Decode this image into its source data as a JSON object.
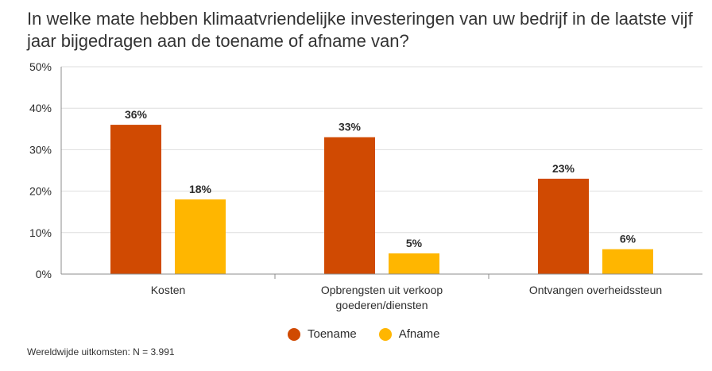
{
  "title": "In welke mate hebben klimaatvriendelijke investeringen van uw bedrijf in de laatste vijf jaar bijgedragen aan de toename of afname van?",
  "footnote": "Wereldwijde uitkomsten: N = 3.991",
  "colors": {
    "toename": "#d04a02",
    "afname": "#ffb600",
    "grid": "#dedede",
    "axis": "#8c8c8c",
    "text": "#2d2d2d"
  },
  "legend": [
    {
      "label": "Toename",
      "color": "#d04a02"
    },
    {
      "label": "Afname",
      "color": "#ffb600"
    }
  ],
  "chart_data": {
    "type": "bar",
    "title": "In welke mate hebben klimaatvriendelijke investeringen van uw bedrijf in de laatste vijf jaar bijgedragen aan de toename of afname van?",
    "categories": [
      [
        "Kosten"
      ],
      [
        "Opbrengsten uit verkoop",
        "goederen/diensten"
      ],
      [
        "Ontvangen overheidssteun"
      ]
    ],
    "series": [
      {
        "name": "Toename",
        "values": [
          36,
          33,
          23
        ],
        "labels": [
          "36%",
          "33%",
          "23%"
        ],
        "color": "#d04a02"
      },
      {
        "name": "Afname",
        "values": [
          18,
          5,
          6
        ],
        "labels": [
          "18%",
          "5%",
          "6%"
        ],
        "color": "#ffb600"
      }
    ],
    "yticks": [
      0,
      10,
      20,
      30,
      40,
      50
    ],
    "ytick_labels": [
      "0%",
      "10%",
      "20%",
      "30%",
      "40%",
      "50%"
    ],
    "ylim": [
      0,
      50
    ],
    "xlabel": "",
    "ylabel": "",
    "grid": true,
    "legend_position": "bottom-center"
  }
}
